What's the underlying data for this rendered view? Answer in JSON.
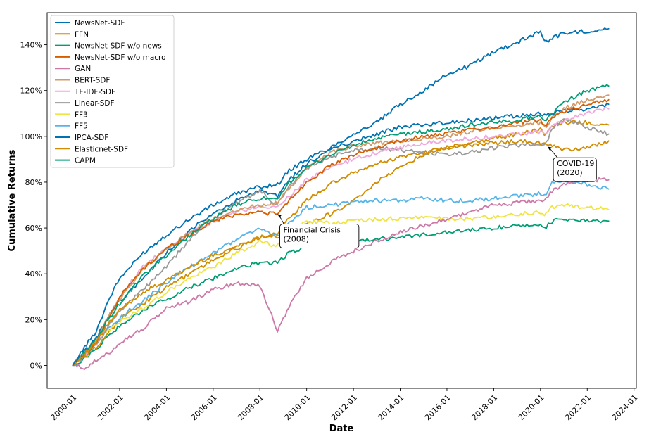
{
  "chart_data": {
    "type": "line",
    "title": "",
    "xlabel": "Date",
    "ylabel": "Cumulative Returns",
    "x_ticks": [
      "2000-01",
      "2002-01",
      "2004-01",
      "2006-01",
      "2008-01",
      "2010-01",
      "2012-01",
      "2014-01",
      "2016-01",
      "2018-01",
      "2020-01",
      "2022-01",
      "2024-01"
    ],
    "x_tick_years": [
      2000,
      2002,
      2004,
      2006,
      2008,
      2010,
      2012,
      2014,
      2016,
      2018,
      2020,
      2022,
      2024
    ],
    "xlim": [
      1998.9,
      2024.1
    ],
    "y_ticks": [
      "0%",
      "20%",
      "40%",
      "60%",
      "80%",
      "100%",
      "120%",
      "140%"
    ],
    "y_tick_values": [
      0,
      20,
      40,
      60,
      80,
      100,
      120,
      140
    ],
    "ylim": [
      -10,
      154
    ],
    "grid": false,
    "legend_position": "top-left",
    "x_years": [
      2000.0,
      2000.5,
      2001.0,
      2001.5,
      2002.0,
      2003.0,
      2004.0,
      2005.0,
      2006.0,
      2007.0,
      2008.0,
      2008.75,
      2009.25,
      2010.0,
      2011.0,
      2012.0,
      2013.0,
      2014.0,
      2015.0,
      2016.0,
      2017.0,
      2018.0,
      2019.0,
      2020.0,
      2020.2,
      2020.5,
      2021.0,
      2022.0,
      2022.9
    ],
    "series": [
      {
        "name": "NewsNet-SDF",
        "color": "#0072b2",
        "values": [
          0,
          8,
          15,
          28,
          38,
          49,
          57,
          64,
          70,
          75,
          78,
          79,
          85,
          90,
          95,
          101,
          106,
          114,
          120,
          127,
          131,
          137,
          141,
          146,
          141,
          143,
          145,
          146,
          147
        ]
      },
      {
        "name": "FFN",
        "color": "#d18c00",
        "values": [
          0,
          5,
          10,
          18,
          24,
          32,
          37,
          43,
          48,
          52,
          56,
          58,
          64,
          72,
          79,
          84,
          88,
          91,
          93,
          95,
          96,
          97,
          98,
          97,
          97,
          96,
          94,
          95,
          98
        ]
      },
      {
        "name": "NewsNet-SDF w/o news",
        "color": "#009e73",
        "values": [
          0,
          6,
          11,
          20,
          27,
          39,
          48,
          57,
          64,
          70,
          73,
          72,
          80,
          86,
          92,
          96,
          99,
          101,
          102,
          103,
          105,
          106,
          107,
          109,
          107,
          110,
          115,
          120,
          122
        ]
      },
      {
        "name": "NewsNet-SDF w/o macro",
        "color": "#d55e00",
        "values": [
          0,
          5,
          10,
          20,
          30,
          42,
          51,
          57,
          63,
          66,
          67,
          66,
          72,
          80,
          87,
          92,
          95,
          98,
          100,
          101,
          103,
          104,
          106,
          107,
          105,
          108,
          111,
          114,
          116
        ]
      },
      {
        "name": "GAN",
        "color": "#cc79a7",
        "values": [
          0,
          -1,
          2,
          5,
          10,
          16,
          25,
          28,
          33,
          36,
          35,
          15,
          26,
          38,
          45,
          50,
          54,
          58,
          61,
          64,
          67,
          70,
          71,
          72,
          73,
          76,
          79,
          81,
          81
        ]
      },
      {
        "name": "BERT-SDF",
        "color": "#d29b6b",
        "values": [
          0,
          5,
          11,
          21,
          29,
          42,
          51,
          58,
          64,
          68,
          70,
          71,
          77,
          86,
          93,
          96,
          97,
          98,
          99,
          100,
          102,
          104,
          105,
          106,
          104,
          108,
          112,
          116,
          118
        ]
      },
      {
        "name": "TF-IDF-SDF",
        "color": "#f0a8dc",
        "values": [
          0,
          5,
          10,
          21,
          30,
          43,
          51,
          58,
          63,
          67,
          69,
          69,
          74,
          81,
          86,
          90,
          93,
          95,
          97,
          98,
          99,
          100,
          101,
          102,
          101,
          104,
          107,
          110,
          112
        ]
      },
      {
        "name": "Linear-SDF",
        "color": "#999999",
        "values": [
          0,
          4,
          9,
          17,
          24,
          33,
          43,
          55,
          64,
          71,
          76,
          70,
          78,
          86,
          91,
          94,
          95,
          94,
          93,
          92,
          93,
          95,
          96,
          97,
          96,
          103,
          108,
          104,
          101
        ]
      },
      {
        "name": "FF3",
        "color": "#f0e442",
        "values": [
          0,
          5,
          10,
          15,
          19,
          25,
          32,
          38,
          43,
          49,
          54,
          52,
          58,
          63,
          62,
          63,
          64,
          64,
          65,
          64,
          64,
          65,
          66,
          67,
          66,
          69,
          70,
          69,
          68
        ]
      },
      {
        "name": "FF5",
        "color": "#56b4e9",
        "values": [
          0,
          5,
          10,
          16,
          21,
          28,
          36,
          43,
          49,
          55,
          60,
          56,
          62,
          69,
          70,
          71,
          72,
          72,
          73,
          72,
          72,
          73,
          74,
          75,
          74,
          80,
          81,
          79,
          77
        ]
      },
      {
        "name": "IPCA-SDF",
        "color": "#0072b2",
        "values": [
          0,
          6,
          12,
          21,
          28,
          38,
          49,
          59,
          66,
          72,
          76,
          74,
          81,
          88,
          94,
          98,
          101,
          104,
          105,
          106,
          107,
          108,
          109,
          110,
          109,
          110,
          111,
          112,
          114
        ]
      },
      {
        "name": "Elasticnet-SDF",
        "color": "#d18c00",
        "values": [
          0,
          4,
          8,
          14,
          20,
          27,
          34,
          40,
          46,
          51,
          56,
          56,
          60,
          62,
          66,
          72,
          80,
          87,
          92,
          95,
          97,
          99,
          101,
          103,
          101,
          104,
          106,
          106,
          105
        ]
      },
      {
        "name": "CAPM",
        "color": "#009e73",
        "values": [
          0,
          3,
          7,
          13,
          17,
          24,
          29,
          34,
          38,
          42,
          45,
          45,
          49,
          52,
          53,
          54,
          55,
          56,
          57,
          58,
          59,
          60,
          61,
          62,
          60,
          63,
          64,
          63,
          63
        ]
      }
    ],
    "annotations": [
      {
        "lines": [
          "Financial Crisis",
          "(2008)"
        ],
        "x_date": 2008.75,
        "y_value": 66,
        "text_x_date": 2009.0,
        "text_y_value": 58
      },
      {
        "lines": [
          "COVID-19",
          "(2020)"
        ],
        "x_date": 2020.3,
        "y_value": 95.5,
        "text_x_date": 2020.7,
        "text_y_value": 87
      }
    ]
  }
}
